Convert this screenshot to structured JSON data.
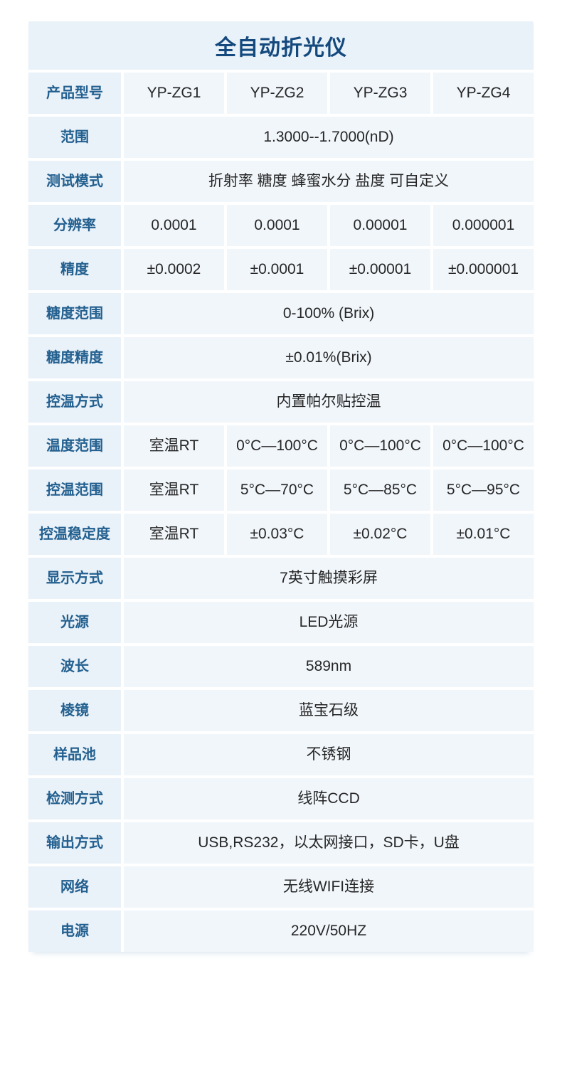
{
  "title": "全自动折光仪",
  "colors": {
    "page_bg": "#ffffff",
    "header_bg": "#e9f1f9",
    "label_bg": "#e9f1f9",
    "cell_bg": "#f1f6fb",
    "title_text": "#14497e",
    "label_text": "#23608f",
    "value_text": "#262626"
  },
  "table": {
    "rows": [
      {
        "label": "产品型号",
        "values": [
          "YP-ZG1",
          "YP-ZG2",
          "YP-ZG3",
          "YP-ZG4"
        ]
      },
      {
        "label": "范围",
        "values": [
          "1.3000--1.7000(nD)"
        ]
      },
      {
        "label": "测试模式",
        "values": [
          "折射率 糖度 蜂蜜水分 盐度 可自定义"
        ]
      },
      {
        "label": "分辨率",
        "values": [
          "0.0001",
          "0.0001",
          "0.00001",
          "0.000001"
        ]
      },
      {
        "label": "精度",
        "values": [
          "±0.0002",
          "±0.0001",
          "±0.00001",
          "±0.000001"
        ]
      },
      {
        "label": "糖度范围",
        "values": [
          "0-100% (Brix)"
        ]
      },
      {
        "label": "糖度精度",
        "values": [
          "±0.01%(Brix)"
        ]
      },
      {
        "label": "控温方式",
        "values": [
          "内置帕尔贴控温"
        ]
      },
      {
        "label": "温度范围",
        "values": [
          "室温RT",
          "0°C—100°C",
          "0°C—100°C",
          "0°C—100°C"
        ]
      },
      {
        "label": "控温范围",
        "values": [
          "室温RT",
          "5°C—70°C",
          "5°C—85°C",
          "5°C—95°C"
        ]
      },
      {
        "label": "控温稳定度",
        "values": [
          "室温RT",
          "±0.03°C",
          "±0.02°C",
          "±0.01°C"
        ]
      },
      {
        "label": "显示方式",
        "values": [
          "7英寸触摸彩屏"
        ]
      },
      {
        "label": "光源",
        "values": [
          "LED光源"
        ]
      },
      {
        "label": "波长",
        "values": [
          "589nm"
        ]
      },
      {
        "label": "棱镜",
        "values": [
          "蓝宝石级"
        ]
      },
      {
        "label": "样品池",
        "values": [
          "不锈钢"
        ]
      },
      {
        "label": "检测方式",
        "values": [
          "线阵CCD"
        ]
      },
      {
        "label": "输出方式",
        "values": [
          "USB,RS232，以太网接口，SD卡，U盘"
        ]
      },
      {
        "label": "网络",
        "values": [
          "无线WIFI连接"
        ]
      },
      {
        "label": "电源",
        "values": [
          "220V/50HZ"
        ]
      }
    ]
  }
}
